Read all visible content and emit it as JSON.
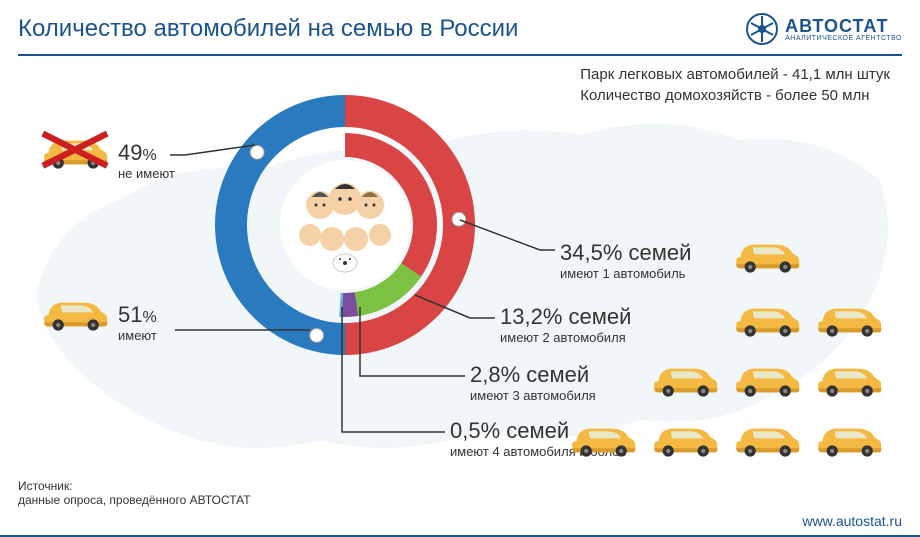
{
  "title": "Количество автомобилей на семью в России",
  "logo": {
    "main": "АВТОСТАТ",
    "sub": "АНАЛИТИЧЕСКОЕ АГЕНТСТВО"
  },
  "subtitle_line1": "Парк легковых автомобилей - 41,1 млн штук",
  "subtitle_line2": "Количество домохозяйств - более 50 млн",
  "outer_ring": {
    "segments": [
      {
        "key": "no_car",
        "value": 49,
        "color": "#2a7abf",
        "label_pct": "49",
        "label_text": "не имеют"
      },
      {
        "key": "have_car",
        "value": 51,
        "color": "#d94545",
        "label_pct": "51",
        "label_text": "имеют"
      }
    ]
  },
  "inner_ring": {
    "start_angle_deg": 180,
    "segments": [
      {
        "key": "one",
        "value": 34.5,
        "color": "#d94545",
        "label_pct": "34,5",
        "label_suffix": "% семей",
        "label_text": "имеют 1 автомобиль"
      },
      {
        "key": "two",
        "value": 13.2,
        "color": "#7cc142",
        "label_pct": "13,2",
        "label_suffix": "% семей",
        "label_text": "имеют 2 автомобиля"
      },
      {
        "key": "three",
        "value": 2.8,
        "color": "#7b4fa0",
        "label_pct": "2,8",
        "label_suffix": "% семей",
        "label_text": "имеют 3 автомобиля"
      },
      {
        "key": "four",
        "value": 0.5,
        "color": "#5bb5d8",
        "label_pct": "0,5",
        "label_suffix": "% семей",
        "label_text": "имеют 4 автомобиля и более"
      }
    ]
  },
  "chart_style": {
    "outer_outer_r": 130,
    "outer_inner_r": 98,
    "inner_outer_r": 92,
    "inner_inner_r": 68,
    "gap_color": "#ffffff",
    "total_inner_sweep_deg": 183.6
  },
  "car_color": {
    "body": "#f4b942",
    "shadow": "#d89a2a",
    "wheel": "#333333",
    "window": "#e8e8c8"
  },
  "map_color": "#b8d4e3",
  "source_label": "Источник:",
  "source_text": "данные опроса, проведённого АВТОСТАТ",
  "url": "www.autostat.ru",
  "pct_unit": "%"
}
